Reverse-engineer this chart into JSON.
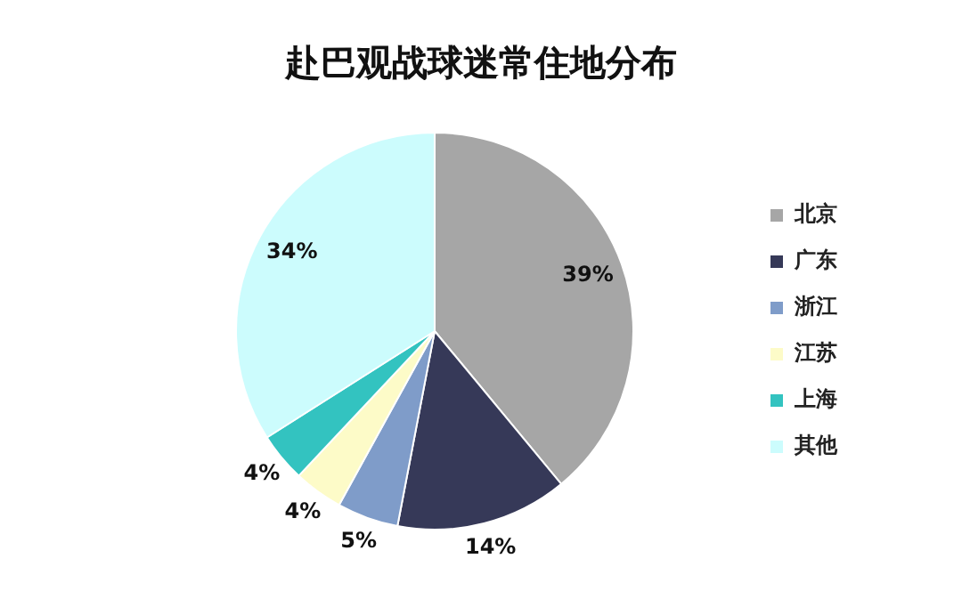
{
  "chart_data": {
    "type": "pie",
    "title": "赴巴观战球迷常住地分布",
    "categories": [
      "北京",
      "广东",
      "浙江",
      "江苏",
      "上海",
      "其他"
    ],
    "values": [
      39,
      14,
      5,
      4,
      4,
      34
    ],
    "value_labels": [
      "39%",
      "14%",
      "5%",
      "4%",
      "4%",
      "34%"
    ],
    "colors": [
      "#a6a6a6",
      "#363958",
      "#7f9cc9",
      "#fdfbc8",
      "#33c3c0",
      "#ccfcfd"
    ],
    "legend": "right"
  }
}
